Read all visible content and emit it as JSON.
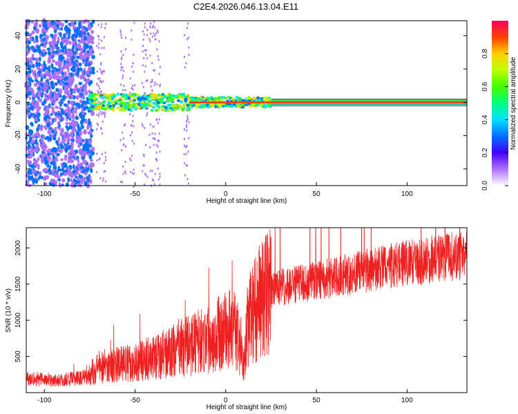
{
  "title": "C2E4.2026.046.13.04.E11",
  "colors": {
    "snr_line": "#ee2020",
    "frame": "#000000",
    "background": "#ffffff"
  },
  "chart_data": [
    {
      "type": "heatmap",
      "title": "C2E4.2026.046.13.04.E11",
      "xlabel": "Height of straight line (km)",
      "ylabel": "Frequency (Hz)",
      "xlim": [
        -110,
        133
      ],
      "ylim": [
        -50,
        49
      ],
      "x_ticks": [
        "-100",
        "-50",
        "0",
        "50",
        "100"
      ],
      "y_ticks": [
        "-40",
        "-20",
        "0",
        "20",
        "40"
      ],
      "colorbar": {
        "label": "Normalized spectral amplitude",
        "range": [
          0.0,
          1.0
        ],
        "ticks": [
          "0.0",
          "0.2",
          "0.4",
          "0.6",
          "0.8"
        ],
        "colormap": "rainbow (white→violet→blue→cyan→green→yellow→orange→red)"
      },
      "features": [
        {
          "name": "broadband noise region",
          "x_range": [
            -110,
            -73
          ],
          "amplitude": 0.2
        },
        {
          "name": "sparse noise columns",
          "x_range": [
            -73,
            -20
          ],
          "amplitude": 0.05
        },
        {
          "name": "strong line near 0 Hz",
          "x_range": [
            -75,
            133
          ],
          "freq_hz": 0,
          "amplitude": 0.9
        }
      ]
    },
    {
      "type": "line",
      "xlabel": "Height of straight line (km)",
      "ylabel": "SNR (10 * v/v)",
      "xlim": [
        -110,
        133
      ],
      "ylim": [
        0,
        2280
      ],
      "x_ticks": [
        "-100",
        "-50",
        "0",
        "50",
        "100"
      ],
      "y_ticks": [
        "500",
        "1000",
        "1500",
        "2000"
      ],
      "series": [
        {
          "name": "SNR",
          "x": [
            -110,
            -100,
            -90,
            -80,
            -75,
            -70,
            -60,
            -50,
            -40,
            -30,
            -20,
            -15,
            -10,
            -5,
            0,
            5,
            10,
            12,
            15,
            20,
            25,
            30,
            40,
            50,
            60,
            70,
            80,
            90,
            100,
            110,
            120,
            133
          ],
          "values": [
            200,
            180,
            170,
            200,
            250,
            360,
            380,
            420,
            480,
            560,
            650,
            700,
            750,
            800,
            850,
            950,
            350,
            950,
            1100,
            1300,
            1400,
            1450,
            1500,
            1550,
            1600,
            1650,
            1700,
            1750,
            1800,
            1820,
            1870,
            1900
          ]
        }
      ]
    }
  ]
}
